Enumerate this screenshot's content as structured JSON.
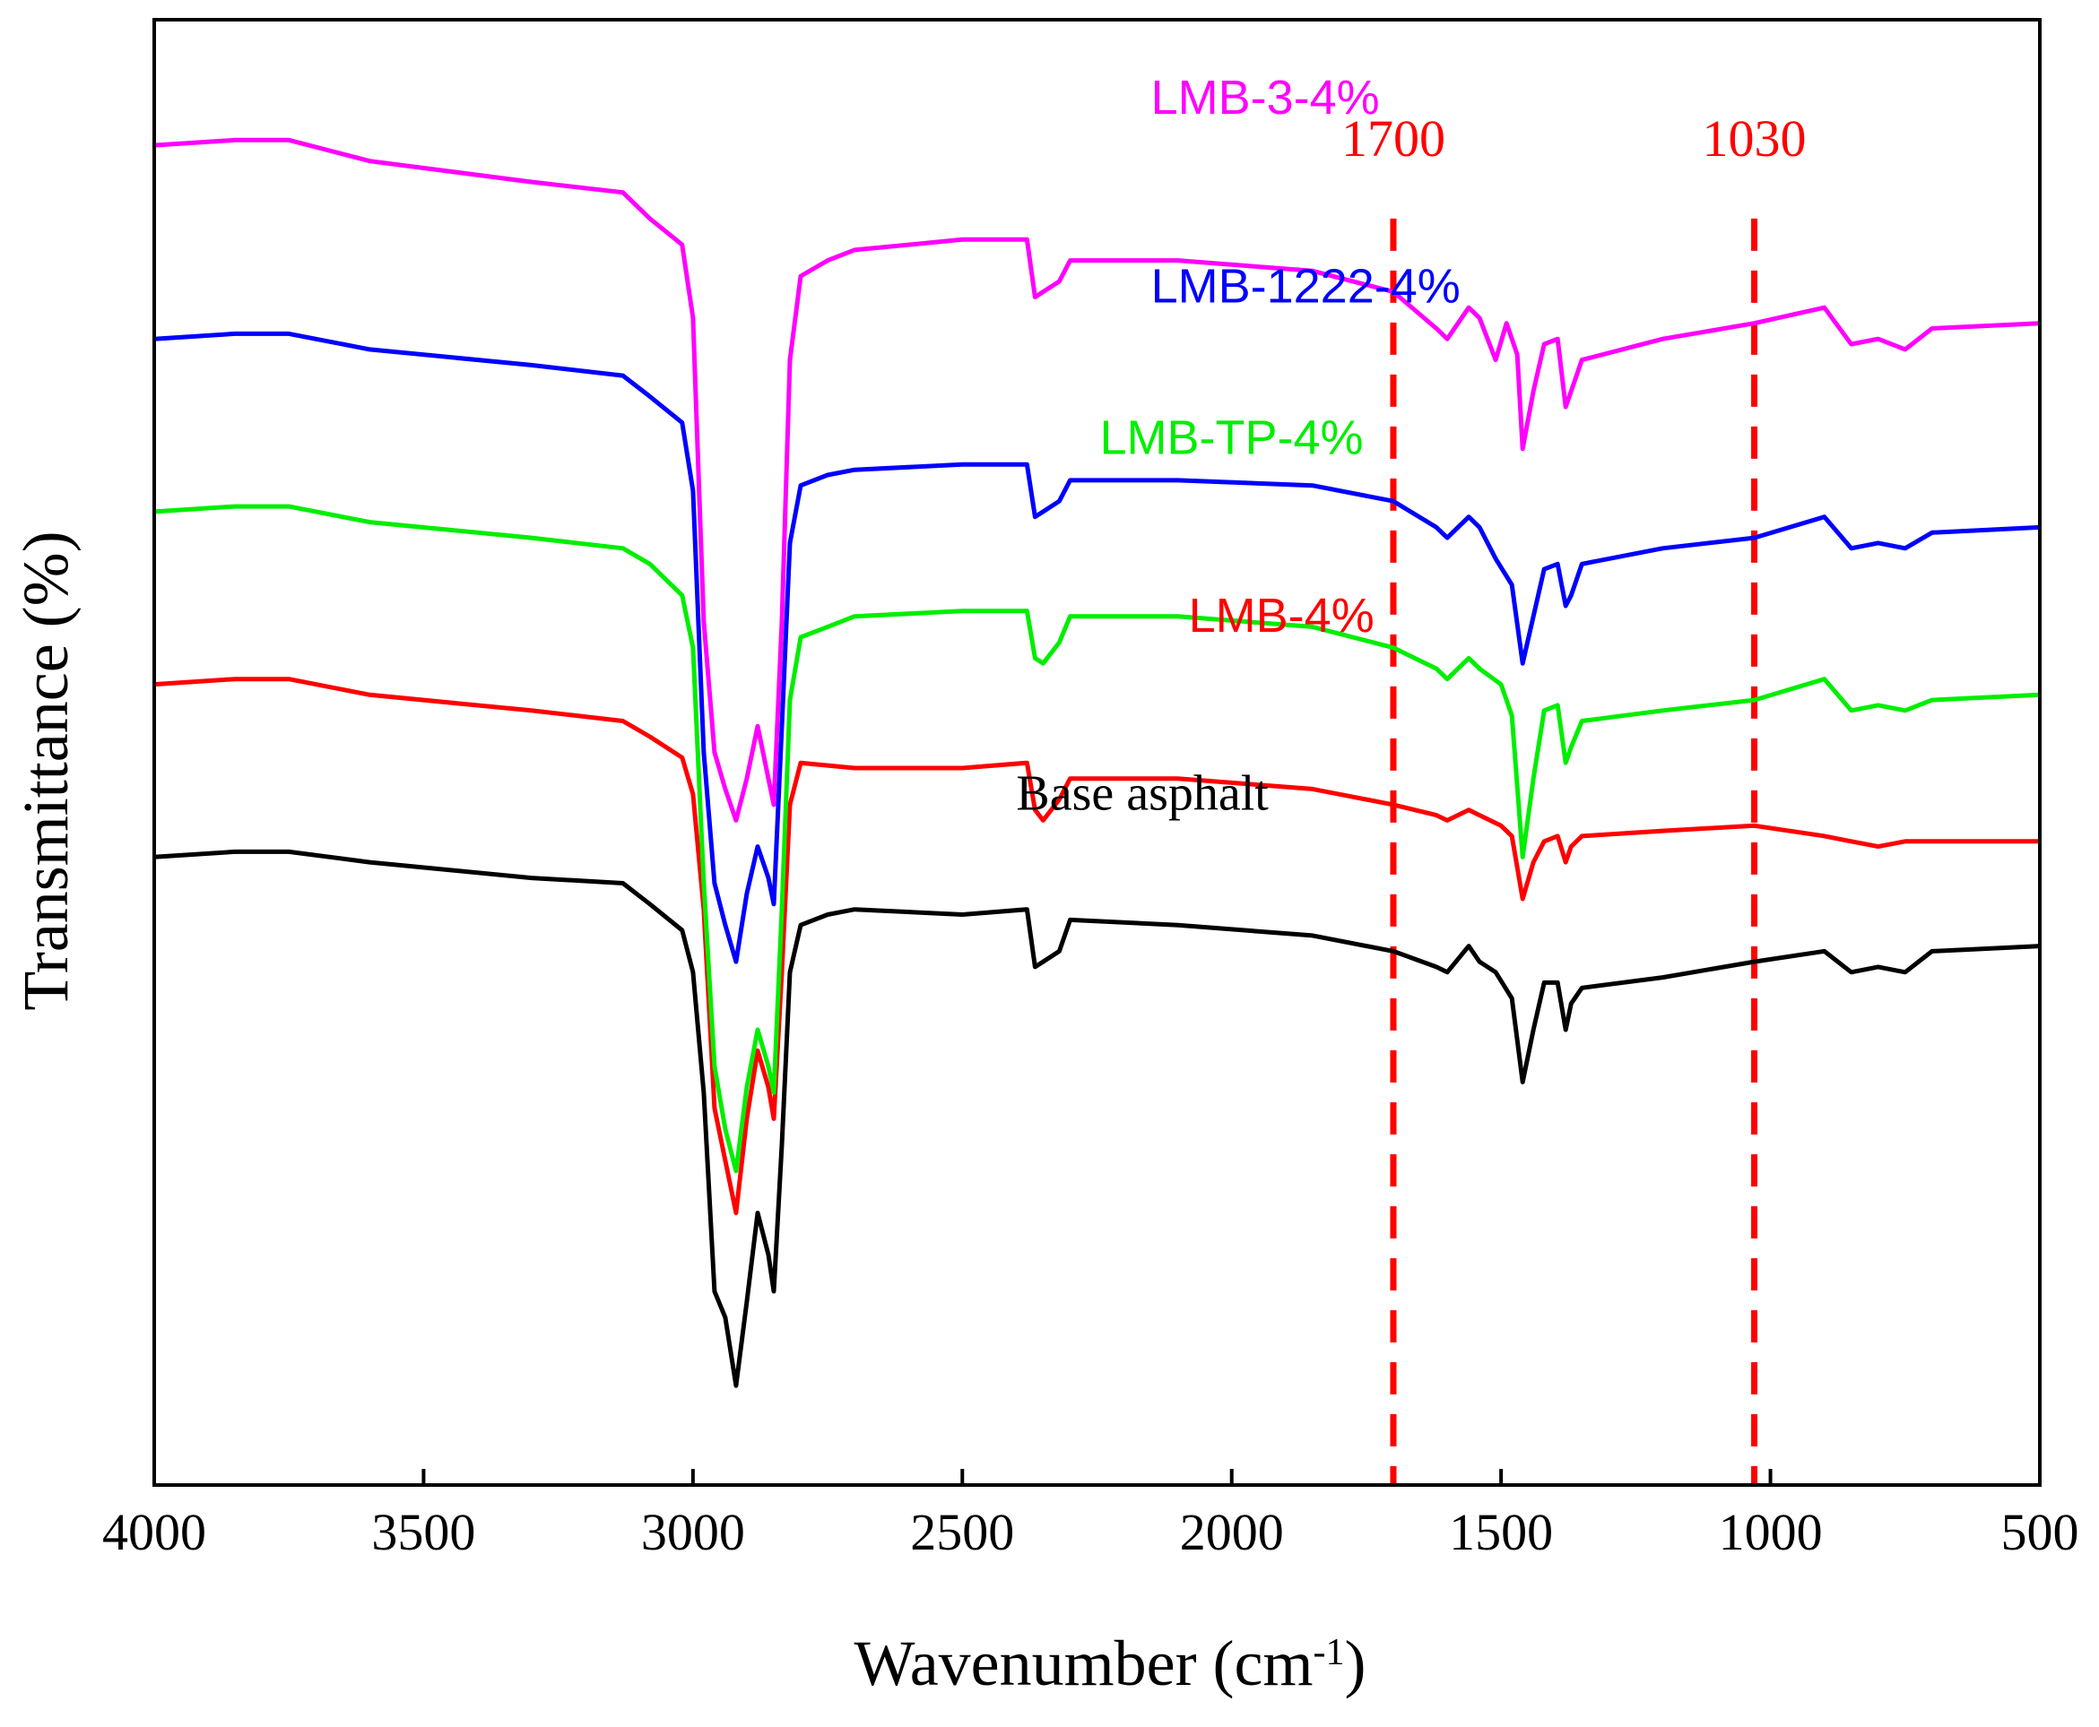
{
  "chart_data": {
    "type": "line",
    "title": "",
    "xlabel_main": "Wavenumber (cm",
    "xlabel_sup": "-1",
    "xlabel_close": ")",
    "ylabel": "Transmittance (%)",
    "xlim": [
      4000,
      500
    ],
    "x_ticks": [
      4000,
      3500,
      3000,
      2500,
      2000,
      1500,
      1000,
      500
    ],
    "y_tick_labels": false,
    "markers": [
      {
        "x": 1700,
        "label": "1700",
        "color": "#ff0000"
      },
      {
        "x": 1030,
        "label": "1030",
        "color": "#ff0000"
      }
    ],
    "series": [
      {
        "name": "Base asphalt",
        "color": "#000000",
        "label_x": 2400,
        "label_y": 0.9,
        "points": [
          [
            4000,
            0
          ],
          [
            3850,
            0.1
          ],
          [
            3750,
            0.1
          ],
          [
            3600,
            -0.1
          ],
          [
            3300,
            -0.4
          ],
          [
            3130,
            -0.5
          ],
          [
            3080,
            -0.9
          ],
          [
            3020,
            -1.4
          ],
          [
            3000,
            -2.2
          ],
          [
            2980,
            -4.5
          ],
          [
            2960,
            -8.3
          ],
          [
            2940,
            -8.8
          ],
          [
            2920,
            -10.1
          ],
          [
            2900,
            -8.5
          ],
          [
            2880,
            -6.8
          ],
          [
            2860,
            -7.6
          ],
          [
            2850,
            -8.3
          ],
          [
            2835,
            -5.5
          ],
          [
            2820,
            -2.2
          ],
          [
            2800,
            -1.3
          ],
          [
            2750,
            -1.1
          ],
          [
            2700,
            -1.0
          ],
          [
            2500,
            -1.1
          ],
          [
            2380,
            -1.0
          ],
          [
            2365,
            -2.1
          ],
          [
            2350,
            -2.0
          ],
          [
            2320,
            -1.8
          ],
          [
            2300,
            -1.2
          ],
          [
            2100,
            -1.3
          ],
          [
            1850,
            -1.5
          ],
          [
            1700,
            -1.8
          ],
          [
            1620,
            -2.1
          ],
          [
            1600,
            -2.2
          ],
          [
            1560,
            -1.7
          ],
          [
            1540,
            -2.0
          ],
          [
            1510,
            -2.2
          ],
          [
            1480,
            -2.7
          ],
          [
            1460,
            -4.3
          ],
          [
            1440,
            -3.3
          ],
          [
            1420,
            -2.4
          ],
          [
            1395,
            -2.4
          ],
          [
            1380,
            -3.3
          ],
          [
            1370,
            -2.8
          ],
          [
            1350,
            -2.5
          ],
          [
            1200,
            -2.3
          ],
          [
            1030,
            -2.0
          ],
          [
            900,
            -1.8
          ],
          [
            850,
            -2.2
          ],
          [
            800,
            -2.1
          ],
          [
            750,
            -2.2
          ],
          [
            700,
            -1.8
          ],
          [
            500,
            -1.7
          ]
        ]
      },
      {
        "name": "LMB-4%",
        "color": "#ff0000",
        "label_x": 2080,
        "label_y": 4.3,
        "points": [
          [
            4000,
            3.3
          ],
          [
            3850,
            3.4
          ],
          [
            3750,
            3.4
          ],
          [
            3600,
            3.1
          ],
          [
            3300,
            2.8
          ],
          [
            3130,
            2.6
          ],
          [
            3080,
            2.3
          ],
          [
            3020,
            1.9
          ],
          [
            3000,
            1.2
          ],
          [
            2980,
            -1.0
          ],
          [
            2960,
            -4.8
          ],
          [
            2940,
            -5.8
          ],
          [
            2920,
            -6.8
          ],
          [
            2900,
            -5.0
          ],
          [
            2880,
            -3.7
          ],
          [
            2860,
            -4.4
          ],
          [
            2850,
            -5.0
          ],
          [
            2835,
            -2.2
          ],
          [
            2820,
            1.0
          ],
          [
            2800,
            1.8
          ],
          [
            2700,
            1.7
          ],
          [
            2500,
            1.7
          ],
          [
            2380,
            1.8
          ],
          [
            2365,
            0.9
          ],
          [
            2350,
            0.7
          ],
          [
            2320,
            1.1
          ],
          [
            2300,
            1.5
          ],
          [
            2100,
            1.5
          ],
          [
            1850,
            1.3
          ],
          [
            1700,
            1.0
          ],
          [
            1620,
            0.8
          ],
          [
            1600,
            0.7
          ],
          [
            1560,
            0.9
          ],
          [
            1540,
            0.8
          ],
          [
            1500,
            0.6
          ],
          [
            1480,
            0.4
          ],
          [
            1460,
            -0.8
          ],
          [
            1440,
            -0.1
          ],
          [
            1420,
            0.3
          ],
          [
            1395,
            0.4
          ],
          [
            1380,
            -0.1
          ],
          [
            1370,
            0.2
          ],
          [
            1350,
            0.4
          ],
          [
            1200,
            0.5
          ],
          [
            1030,
            0.6
          ],
          [
            900,
            0.4
          ],
          [
            850,
            0.3
          ],
          [
            800,
            0.2
          ],
          [
            750,
            0.3
          ],
          [
            700,
            0.3
          ],
          [
            500,
            0.3
          ]
        ]
      },
      {
        "name": "LMB-TP-4%",
        "color": "#00ee00",
        "label_x": 2245,
        "label_y": 7.7,
        "points": [
          [
            4000,
            6.6
          ],
          [
            3850,
            6.7
          ],
          [
            3750,
            6.7
          ],
          [
            3600,
            6.4
          ],
          [
            3300,
            6.1
          ],
          [
            3130,
            5.9
          ],
          [
            3080,
            5.6
          ],
          [
            3020,
            5.0
          ],
          [
            3000,
            4.0
          ],
          [
            2980,
            -0.5
          ],
          [
            2960,
            -4.0
          ],
          [
            2940,
            -5.2
          ],
          [
            2920,
            -6.0
          ],
          [
            2900,
            -4.4
          ],
          [
            2880,
            -3.3
          ],
          [
            2860,
            -4.0
          ],
          [
            2850,
            -4.5
          ],
          [
            2835,
            -1.0
          ],
          [
            2820,
            3.0
          ],
          [
            2800,
            4.2
          ],
          [
            2750,
            4.4
          ],
          [
            2700,
            4.6
          ],
          [
            2500,
            4.7
          ],
          [
            2380,
            4.7
          ],
          [
            2365,
            3.8
          ],
          [
            2350,
            3.7
          ],
          [
            2320,
            4.1
          ],
          [
            2300,
            4.6
          ],
          [
            2100,
            4.6
          ],
          [
            1850,
            4.4
          ],
          [
            1700,
            4.0
          ],
          [
            1620,
            3.6
          ],
          [
            1600,
            3.4
          ],
          [
            1560,
            3.8
          ],
          [
            1540,
            3.6
          ],
          [
            1500,
            3.3
          ],
          [
            1480,
            2.7
          ],
          [
            1460,
            0.0
          ],
          [
            1440,
            1.5
          ],
          [
            1420,
            2.8
          ],
          [
            1395,
            2.9
          ],
          [
            1380,
            1.8
          ],
          [
            1370,
            2.1
          ],
          [
            1350,
            2.6
          ],
          [
            1200,
            2.8
          ],
          [
            1030,
            3.0
          ],
          [
            900,
            3.4
          ],
          [
            850,
            2.8
          ],
          [
            800,
            2.9
          ],
          [
            750,
            2.8
          ],
          [
            700,
            3.0
          ],
          [
            500,
            3.1
          ]
        ]
      },
      {
        "name": "LMB-1222-4%",
        "color": "#0000ff",
        "label_x": 2150,
        "label_y": 10.6,
        "points": [
          [
            4000,
            9.9
          ],
          [
            3850,
            10.0
          ],
          [
            3750,
            10.0
          ],
          [
            3600,
            9.7
          ],
          [
            3300,
            9.4
          ],
          [
            3130,
            9.2
          ],
          [
            3080,
            8.8
          ],
          [
            3020,
            8.3
          ],
          [
            3000,
            7.0
          ],
          [
            2980,
            2.0
          ],
          [
            2960,
            -0.5
          ],
          [
            2940,
            -1.3
          ],
          [
            2920,
            -2.0
          ],
          [
            2900,
            -0.7
          ],
          [
            2880,
            0.2
          ],
          [
            2860,
            -0.4
          ],
          [
            2850,
            -0.9
          ],
          [
            2835,
            2.5
          ],
          [
            2820,
            6.0
          ],
          [
            2800,
            7.1
          ],
          [
            2750,
            7.3
          ],
          [
            2700,
            7.4
          ],
          [
            2500,
            7.5
          ],
          [
            2380,
            7.5
          ],
          [
            2365,
            6.5
          ],
          [
            2350,
            6.6
          ],
          [
            2320,
            6.8
          ],
          [
            2300,
            7.2
          ],
          [
            2100,
            7.2
          ],
          [
            1850,
            7.1
          ],
          [
            1700,
            6.8
          ],
          [
            1620,
            6.3
          ],
          [
            1600,
            6.1
          ],
          [
            1560,
            6.5
          ],
          [
            1540,
            6.3
          ],
          [
            1510,
            5.7
          ],
          [
            1480,
            5.2
          ],
          [
            1460,
            3.7
          ],
          [
            1440,
            4.6
          ],
          [
            1420,
            5.5
          ],
          [
            1395,
            5.6
          ],
          [
            1380,
            4.8
          ],
          [
            1370,
            5.0
          ],
          [
            1350,
            5.6
          ],
          [
            1200,
            5.9
          ],
          [
            1030,
            6.1
          ],
          [
            900,
            6.5
          ],
          [
            850,
            5.9
          ],
          [
            800,
            6.0
          ],
          [
            750,
            5.9
          ],
          [
            700,
            6.2
          ],
          [
            500,
            6.3
          ]
        ]
      },
      {
        "name": "LMB-3-4%",
        "color": "#ff00ff",
        "label_x": 2150,
        "label_y": 14.2,
        "points": [
          [
            4000,
            13.6
          ],
          [
            3850,
            13.7
          ],
          [
            3750,
            13.7
          ],
          [
            3600,
            13.3
          ],
          [
            3300,
            12.9
          ],
          [
            3130,
            12.7
          ],
          [
            3080,
            12.2
          ],
          [
            3020,
            11.7
          ],
          [
            3000,
            10.3
          ],
          [
            2980,
            4.5
          ],
          [
            2960,
            2.0
          ],
          [
            2940,
            1.3
          ],
          [
            2920,
            0.7
          ],
          [
            2900,
            1.5
          ],
          [
            2880,
            2.5
          ],
          [
            2860,
            1.5
          ],
          [
            2850,
            1.0
          ],
          [
            2835,
            4.5
          ],
          [
            2820,
            9.5
          ],
          [
            2800,
            11.1
          ],
          [
            2750,
            11.4
          ],
          [
            2700,
            11.6
          ],
          [
            2500,
            11.8
          ],
          [
            2380,
            11.8
          ],
          [
            2365,
            10.7
          ],
          [
            2350,
            10.8
          ],
          [
            2320,
            11.0
          ],
          [
            2300,
            11.4
          ],
          [
            2100,
            11.4
          ],
          [
            1850,
            11.2
          ],
          [
            1700,
            10.8
          ],
          [
            1620,
            10.1
          ],
          [
            1600,
            9.9
          ],
          [
            1560,
            10.5
          ],
          [
            1540,
            10.3
          ],
          [
            1510,
            9.5
          ],
          [
            1490,
            10.2
          ],
          [
            1470,
            9.6
          ],
          [
            1460,
            7.8
          ],
          [
            1440,
            8.9
          ],
          [
            1420,
            9.8
          ],
          [
            1395,
            9.9
          ],
          [
            1380,
            8.6
          ],
          [
            1370,
            8.9
          ],
          [
            1350,
            9.5
          ],
          [
            1200,
            9.9
          ],
          [
            1030,
            10.2
          ],
          [
            900,
            10.5
          ],
          [
            850,
            9.8
          ],
          [
            800,
            9.9
          ],
          [
            750,
            9.7
          ],
          [
            700,
            10.1
          ],
          [
            500,
            10.2
          ]
        ]
      }
    ]
  }
}
